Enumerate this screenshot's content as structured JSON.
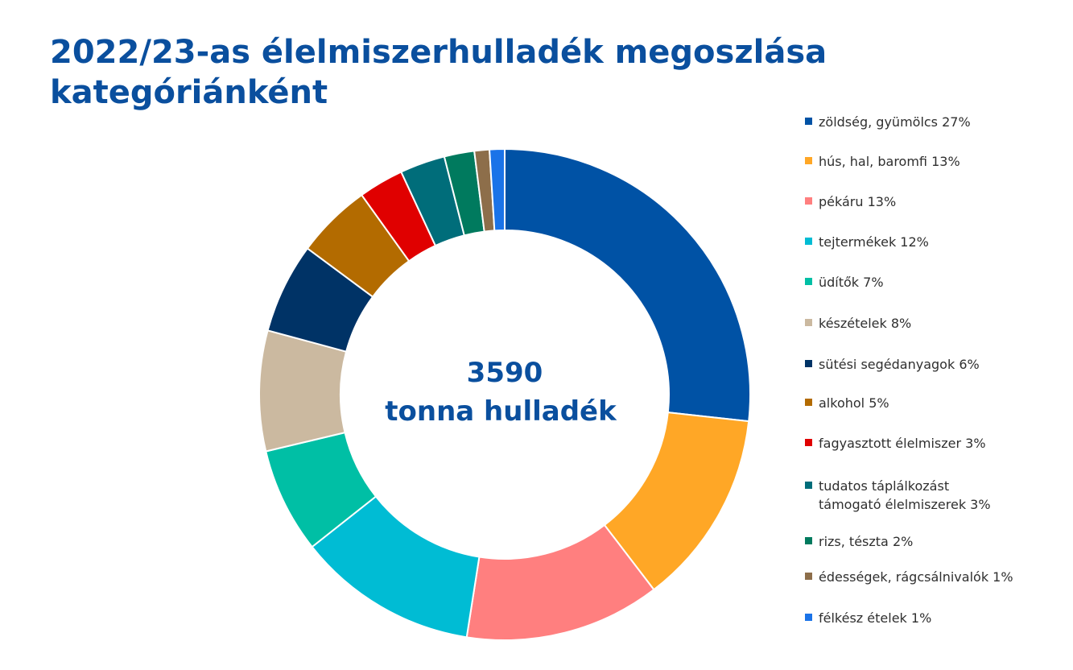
{
  "chart_data": {
    "type": "pie",
    "title_lines": [
      "2022/23-as élelmiszerhulladék megoszlása",
      "kategóriánként"
    ],
    "center_value": "3590",
    "center_label": "tonna hulladék",
    "donut": true,
    "legend_position": "right",
    "slices": [
      {
        "label": "zöldség, gyümölcs 27%",
        "value": 27,
        "color": "#0052a5"
      },
      {
        "label": "hús, hal, baromfi 13%",
        "value": 13,
        "color": "#ffa726"
      },
      {
        "label": "pékáru 13%",
        "value": 13,
        "color": "#ff7f7f"
      },
      {
        "label": "tejtermékek 12%",
        "value": 12,
        "color": "#00bcd4"
      },
      {
        "label": "üdítők 7%",
        "value": 7,
        "color": "#00bfa5"
      },
      {
        "label": "készételek 8%",
        "value": 8,
        "color": "#cbb9a0"
      },
      {
        "label": "sütési segédanyagok 6%",
        "value": 6,
        "color": "#003366"
      },
      {
        "label": "alkohol 5%",
        "value": 5,
        "color": "#b36b00"
      },
      {
        "label": "fagyasztott élelmiszer 3%",
        "value": 3,
        "color": "#e00000"
      },
      {
        "label": "tudatos táplálkozást\ntámogató élelmiszerek 3%",
        "value": 3,
        "color": "#006d7a"
      },
      {
        "label": "rizs, tészta 2%",
        "value": 2,
        "color": "#007a5e"
      },
      {
        "label": "édességek, rágcsálnivalók 1%",
        "value": 1,
        "color": "#8d6e4a"
      },
      {
        "label": "félkész ételek 1%",
        "value": 1,
        "color": "#1a73e8"
      }
    ]
  }
}
